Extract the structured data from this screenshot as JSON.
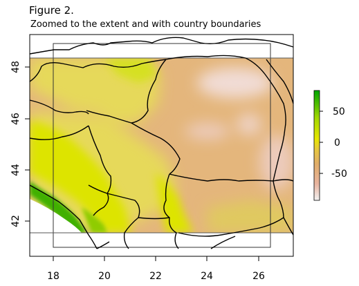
{
  "figure": {
    "label": "Figure 2.",
    "subtitle": "Zoomed to the extent and with country boundaries"
  },
  "map": {
    "x_axis": {
      "ticks": [
        "18",
        "20",
        "22",
        "24",
        "26"
      ],
      "range": [
        17.2,
        27.3
      ]
    },
    "y_axis": {
      "ticks": [
        "42",
        "44",
        "46",
        "48"
      ],
      "range": [
        40.7,
        49.2
      ]
    },
    "raster_extent": {
      "lon": [
        17.2,
        27.3
      ],
      "lat": [
        41.6,
        48.4
      ]
    },
    "extent_box": {
      "lon": [
        18,
        26.4
      ],
      "lat": [
        41,
        49
      ]
    },
    "legend": {
      "ticks": [
        "50",
        "0",
        "-50"
      ],
      "range": [
        -80,
        80
      ],
      "colors": [
        "#f2f2f2",
        "#e8b4a0",
        "#e0ad6a",
        "#e6c640",
        "#e6e600",
        "#a3d800",
        "#00a600"
      ]
    },
    "colors": {
      "lowland": "#e4b67c",
      "hill": "#e6d95a",
      "mountain": "#d6e014",
      "high": "#5cc400",
      "peak": "#f1dcd5",
      "sea": "#ffffff"
    }
  }
}
